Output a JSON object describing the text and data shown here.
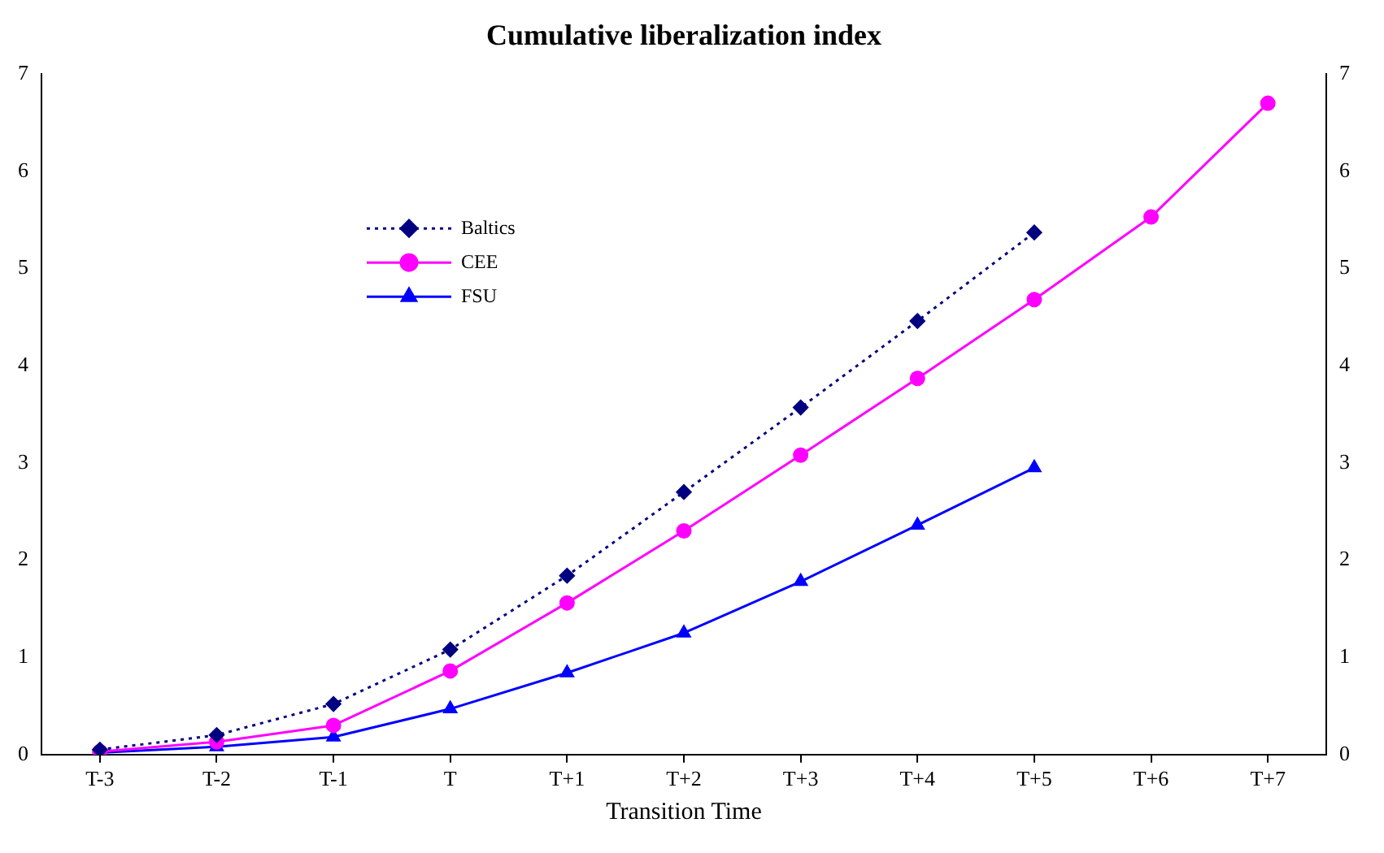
{
  "chart_data": {
    "type": "line",
    "title": "Cumulative liberalization index",
    "xlabel": "Transition Time",
    "categories": [
      "T-3",
      "T-2",
      "T-1",
      "T",
      "T+1",
      "T+2",
      "T+3",
      "T+4",
      "T+5",
      "T+6",
      "T+7"
    ],
    "series": [
      {
        "name": "Baltics",
        "color": "#000080",
        "marker": "diamond",
        "line_style": "dotted",
        "values": [
          0.05,
          0.2,
          0.52,
          1.08,
          1.84,
          2.7,
          3.57,
          4.46,
          5.37,
          null,
          null
        ]
      },
      {
        "name": "CEE",
        "color": "#ff00ff",
        "marker": "circle",
        "line_style": "solid",
        "values": [
          0.03,
          0.13,
          0.3,
          0.86,
          1.56,
          2.3,
          3.08,
          3.87,
          4.68,
          5.53,
          6.7
        ]
      },
      {
        "name": "FSU",
        "color": "#0000ff",
        "marker": "triangle",
        "line_style": "solid",
        "values": [
          0.02,
          0.08,
          0.18,
          0.47,
          0.84,
          1.25,
          1.78,
          2.36,
          2.95,
          null,
          null
        ]
      }
    ],
    "ylim": [
      0,
      7
    ],
    "yticks": [
      0,
      1,
      2,
      3,
      4,
      5,
      6,
      7
    ],
    "y2lim": [
      0,
      7
    ],
    "y2ticks": [
      0,
      1,
      2,
      3,
      4,
      5,
      6,
      7
    ],
    "grid": false,
    "legend": "top left"
  }
}
